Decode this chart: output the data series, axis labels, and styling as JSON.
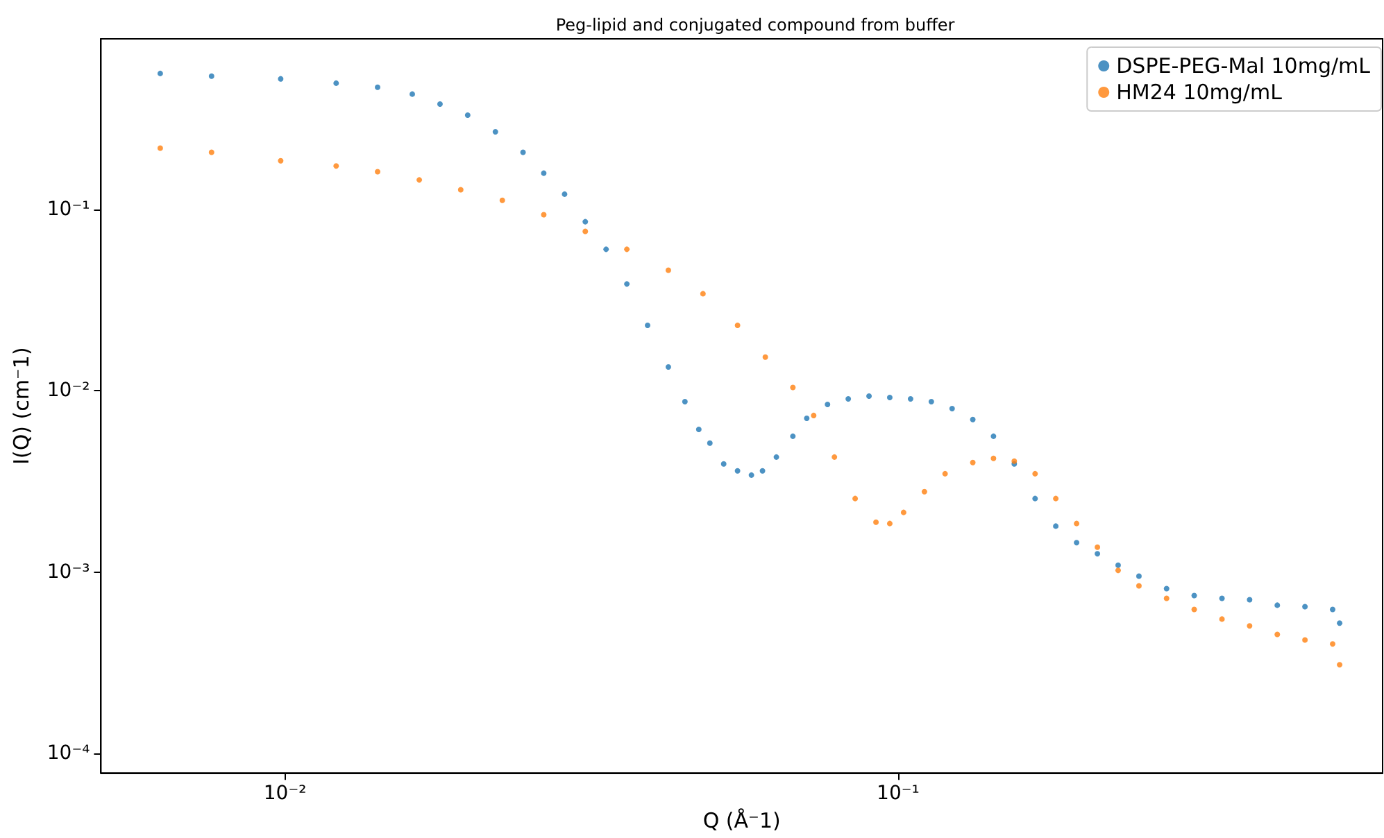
{
  "chart_data": {
    "type": "scatter",
    "title": "Peg-lipid and conjugated compound from buffer",
    "xlabel": "Q (Å⁻1)",
    "ylabel": "I(Q) (cm⁻1)",
    "log": "xy",
    "grid": false,
    "legend": "top right",
    "marker": "circle",
    "xlim": [
      0.00501,
      0.617
    ],
    "ylim": [
      7.8e-05,
      0.869
    ],
    "xticks": [
      {
        "value": 0.01,
        "label": "10⁻²"
      },
      {
        "value": 0.1,
        "label": "10⁻¹"
      }
    ],
    "yticks": [
      {
        "value": 0.0001,
        "label": "10⁻⁴"
      },
      {
        "value": 0.001,
        "label": "10⁻³"
      },
      {
        "value": 0.01,
        "label": "10⁻²"
      },
      {
        "value": 0.1,
        "label": "10⁻¹"
      }
    ],
    "series": [
      {
        "name": "DSPE-PEG-Mal 10mg/mL",
        "color": "#1f77b4",
        "x": [
          0.00626,
          0.00759,
          0.00984,
          0.01212,
          0.01416,
          0.01613,
          0.0179,
          0.01986,
          0.02204,
          0.02445,
          0.02643,
          0.02858,
          0.03089,
          0.0334,
          0.03611,
          0.03903,
          0.0422,
          0.04491,
          0.04731,
          0.04932,
          0.05195,
          0.05472,
          0.05765,
          0.0601,
          0.06331,
          0.06736,
          0.07096,
          0.07672,
          0.08293,
          0.08966,
          0.09693,
          0.1048,
          0.1133,
          0.1225,
          0.1324,
          0.1431,
          0.1547,
          0.1673,
          0.1808,
          0.1955,
          0.2114,
          0.2285,
          0.2471,
          0.2741,
          0.3041,
          0.3375,
          0.3744,
          0.4154,
          0.4609,
          0.5114,
          0.525
        ],
        "values": [
          0.56,
          0.541,
          0.523,
          0.495,
          0.47,
          0.431,
          0.38,
          0.33,
          0.267,
          0.206,
          0.158,
          0.121,
          0.0853,
          0.0601,
          0.0387,
          0.0229,
          0.0135,
          0.00869,
          0.00611,
          0.00513,
          0.00394,
          0.00361,
          0.00342,
          0.00361,
          0.0043,
          0.0056,
          0.00703,
          0.00839,
          0.009,
          0.00932,
          0.00916,
          0.009,
          0.00869,
          0.00796,
          0.00692,
          0.0056,
          0.00394,
          0.00254,
          0.00179,
          0.00145,
          0.00126,
          0.00109,
          0.000948,
          0.00081,
          0.000741,
          0.000716,
          0.000703,
          0.000656,
          0.000644,
          0.000622,
          0.000522
        ]
      },
      {
        "name": "HM24 10mg/mL",
        "color": "#ff7f0e",
        "x": [
          0.00626,
          0.00759,
          0.00984,
          0.01212,
          0.01416,
          0.01656,
          0.01935,
          0.02262,
          0.02643,
          0.03089,
          0.03611,
          0.0422,
          0.04806,
          0.05472,
          0.06074,
          0.06736,
          0.07283,
          0.07874,
          0.08511,
          0.09203,
          0.09693,
          0.1021,
          0.1104,
          0.1193,
          0.1324,
          0.1431,
          0.1547,
          0.1673,
          0.1808,
          0.1955,
          0.2114,
          0.2285,
          0.2471,
          0.2741,
          0.3041,
          0.3375,
          0.3744,
          0.4154,
          0.4609,
          0.5114,
          0.525
        ],
        "values": [
          0.217,
          0.206,
          0.185,
          0.173,
          0.161,
          0.145,
          0.128,
          0.112,
          0.0932,
          0.0755,
          0.0601,
          0.0461,
          0.0342,
          0.0229,
          0.0153,
          0.0104,
          0.00729,
          0.0043,
          0.00254,
          0.00188,
          0.00185,
          0.00213,
          0.00277,
          0.00348,
          0.00401,
          0.00423,
          0.00408,
          0.00348,
          0.00254,
          0.00185,
          0.00137,
          0.00102,
          0.000839,
          0.000716,
          0.000622,
          0.00055,
          0.000504,
          0.000453,
          0.000422,
          0.000401,
          0.000308
        ]
      }
    ]
  }
}
